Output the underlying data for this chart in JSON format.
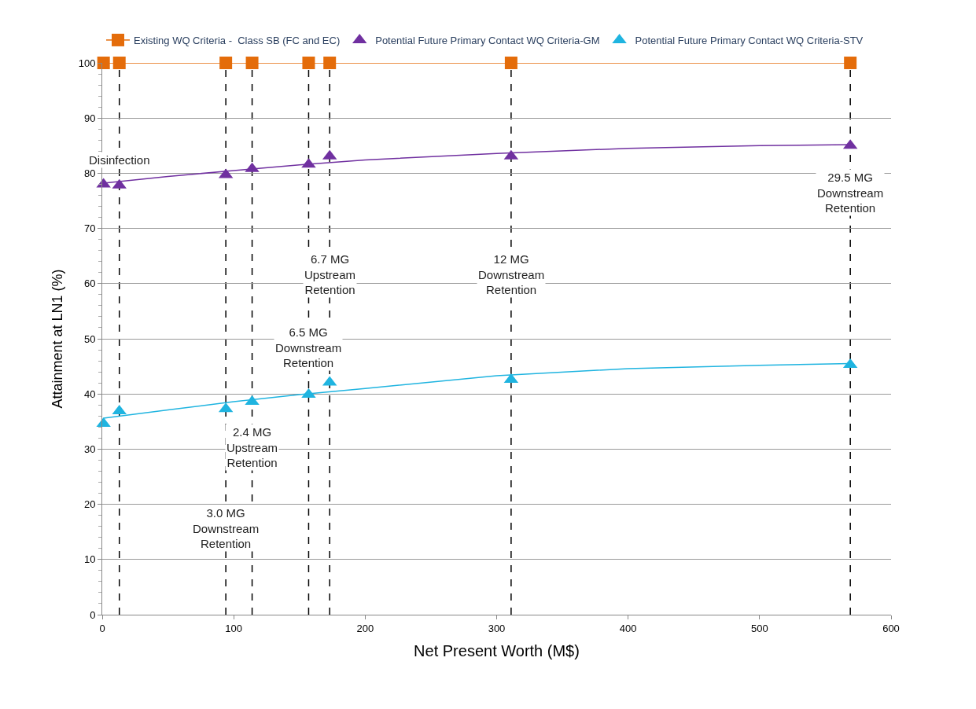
{
  "chart_data": {
    "type": "scatter",
    "xlabel": "Net Present Worth (M$)",
    "ylabel": "Attainment at LN1 (%)",
    "x": [
      1,
      13,
      94,
      114,
      157,
      173,
      311,
      569
    ],
    "series": [
      {
        "name": "Existing WQ Criteria -  Class SB (FC and EC)",
        "type": "line",
        "marker": "square",
        "color": "#e46c0a",
        "values": [
          100,
          100,
          100,
          100,
          100,
          100,
          100,
          100
        ]
      },
      {
        "name": "Potential Future Primary Contact WQ Criteria-GM",
        "marker": "triangle",
        "color": "#7030a0",
        "values": [
          78,
          77.8,
          79.7,
          80.8,
          81.6,
          83.1,
          83.1,
          85
        ]
      },
      {
        "name": "Potential Future Primary Contact WQ Criteria-STV",
        "marker": "triangle",
        "color": "#1fb4e0",
        "values": [
          34.6,
          36.9,
          37.3,
          38.6,
          39.9,
          42.1,
          42.6,
          45.3
        ]
      },
      {
        "type": "line",
        "marker": "none",
        "color": "#7030a0",
        "x": [
          1,
          50,
          100,
          150,
          200,
          300,
          400,
          500,
          569
        ],
        "values": [
          78.2,
          79.4,
          80.5,
          81.5,
          82.4,
          83.6,
          84.5,
          85,
          85.2
        ]
      },
      {
        "type": "line",
        "marker": "none",
        "color": "#1fb4e0",
        "x": [
          1,
          50,
          100,
          150,
          200,
          300,
          400,
          500,
          569
        ],
        "values": [
          35.6,
          37.1,
          38.6,
          39.9,
          41,
          43.3,
          44.6,
          45.2,
          45.5
        ]
      }
    ],
    "xlim": [
      0,
      600
    ],
    "xticks": [
      0,
      100,
      200,
      300,
      400,
      500,
      600
    ],
    "ylim": [
      0,
      100
    ],
    "yticks": [
      0,
      10,
      20,
      30,
      40,
      50,
      60,
      70,
      80,
      90,
      100
    ],
    "grid": "y",
    "legend": "top",
    "ref_lines": [
      {
        "axis": "x",
        "value": 13,
        "color": "#000000",
        "line_style": "dashed"
      },
      {
        "axis": "x",
        "value": 94,
        "color": "#000000",
        "line_style": "dashed"
      },
      {
        "axis": "x",
        "value": 114,
        "color": "#000000",
        "line_style": "dashed"
      },
      {
        "axis": "x",
        "value": 157,
        "color": "#000000",
        "line_style": "dashed"
      },
      {
        "axis": "x",
        "value": 173,
        "color": "#000000",
        "line_style": "dashed"
      },
      {
        "axis": "x",
        "value": 311,
        "color": "#000000",
        "line_style": "dashed"
      },
      {
        "axis": "x",
        "value": 569,
        "color": "#000000",
        "line_style": "dashed"
      }
    ],
    "annotations": [
      {
        "text": "Disinfection",
        "x": 13,
        "y": 82.4
      },
      {
        "text": "3.0 MG\nDownstream\nRetention",
        "x": 94,
        "y": 15.7
      },
      {
        "text": "2.4 MG\nUpstream\nRetention",
        "x": 114,
        "y": 30.3
      },
      {
        "text": "6.5 MG\nDownstream\nRetention",
        "x": 157,
        "y": 48.5
      },
      {
        "text": "6.7 MG\nUpstream\nRetention",
        "x": 173,
        "y": 61.7
      },
      {
        "text": "12 MG\nDownstream\nRetention",
        "x": 311,
        "y": 61.7
      },
      {
        "text": "29.5 MG\nDownstream\nRetention",
        "x": 569,
        "y": 76.5
      }
    ]
  }
}
